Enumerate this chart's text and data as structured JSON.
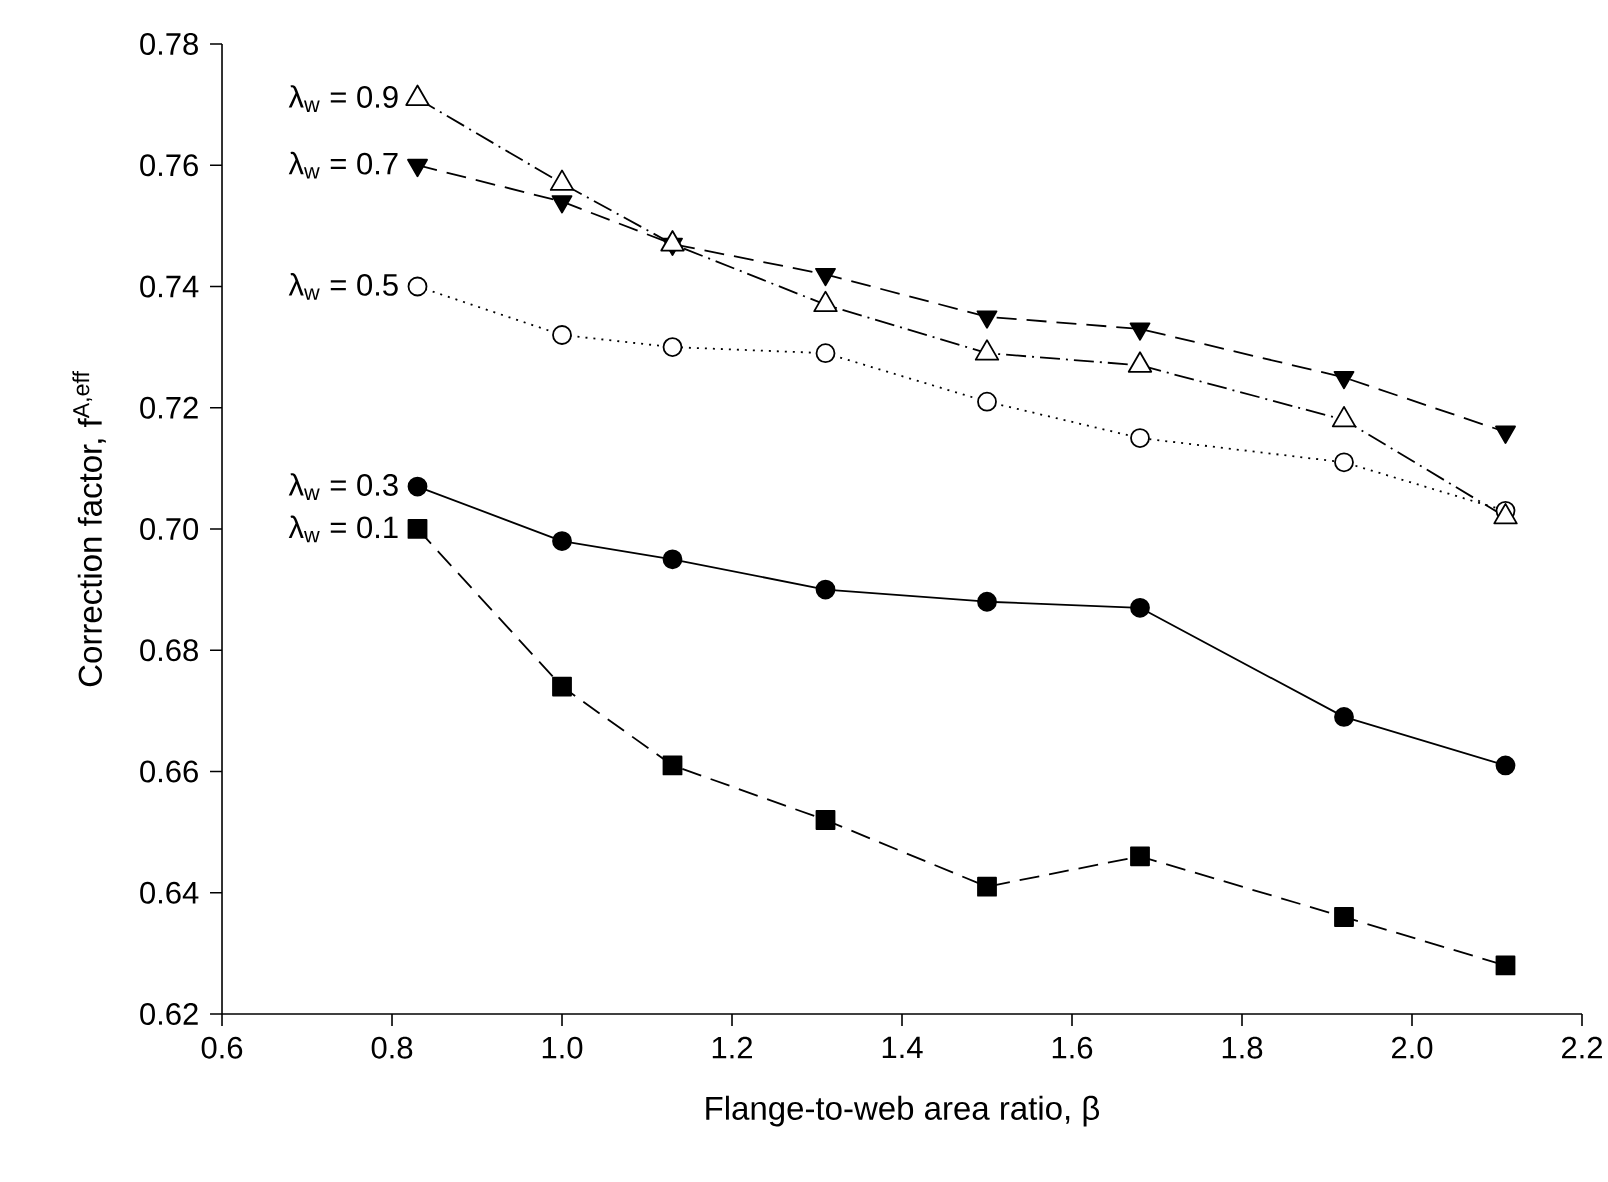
{
  "chart_data": {
    "type": "line",
    "xlabel": "Flange-to-web area ratio, β",
    "ylabel": "Correction factor, f$^{A,eff}$",
    "x": [
      0.83,
      1.0,
      1.13,
      1.31,
      1.5,
      1.68,
      1.92,
      2.11
    ],
    "series": [
      {
        "name": "λ$_{w}$ = 0.1",
        "color": "#000000",
        "marker": "square",
        "line_style": "dashed",
        "values": [
          0.7,
          0.674,
          0.661,
          0.652,
          0.641,
          0.646,
          0.636,
          0.628
        ]
      },
      {
        "name": "λ$_{w}$ = 0.3",
        "color": "#000000",
        "marker": "circle",
        "line_style": "solid",
        "values": [
          0.707,
          0.698,
          0.695,
          0.69,
          0.688,
          0.687,
          0.669,
          0.661
        ]
      },
      {
        "name": "λ$_{w}$ = 0.5",
        "color": "#000000",
        "marker": "circle-open",
        "line_style": "dotted",
        "values": [
          0.74,
          0.732,
          0.73,
          0.729,
          0.721,
          0.715,
          0.711,
          0.703
        ]
      },
      {
        "name": "λ$_{w}$ = 0.7",
        "color": "#000000",
        "marker": "triangle-down",
        "line_style": "dashed",
        "values": [
          0.76,
          0.754,
          0.747,
          0.742,
          0.735,
          0.733,
          0.725,
          0.716
        ]
      },
      {
        "name": "λ$_{w}$ = 0.9",
        "color": "#000000",
        "marker": "triangle-open",
        "line_style": "dashdot",
        "values": [
          0.771,
          0.757,
          0.747,
          0.737,
          0.729,
          0.727,
          0.718,
          0.702
        ]
      }
    ],
    "xlim": [
      0.6,
      2.2
    ],
    "ylim": [
      0.62,
      0.78
    ],
    "xticks": [
      0.6,
      0.8,
      {
        "value": 1.0,
        "label": "1.0"
      },
      1.2,
      1.4,
      1.6,
      1.8,
      {
        "value": 2.0,
        "label": "2.0"
      },
      2.2
    ],
    "yticks": [
      0.62,
      0.64,
      0.66,
      0.68,
      {
        "value": 0.7,
        "label": "0.70"
      },
      0.72,
      0.74,
      0.76,
      0.78
    ],
    "grid": false
  }
}
